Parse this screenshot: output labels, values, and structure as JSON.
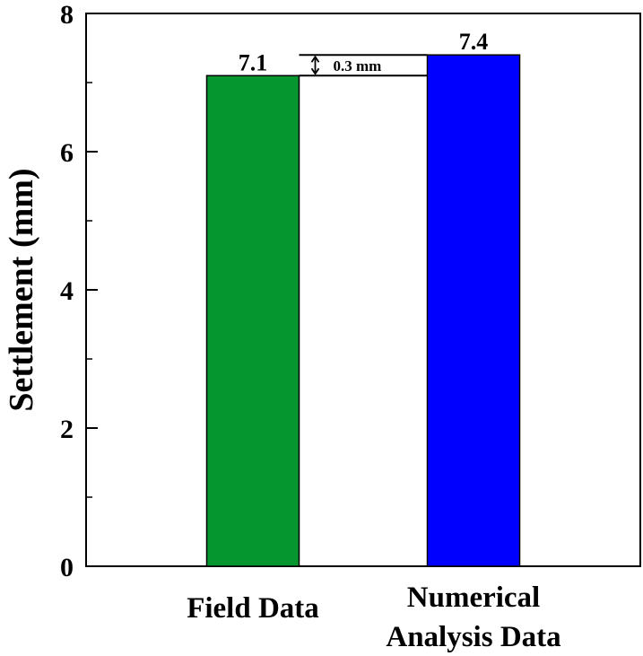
{
  "chart_data": {
    "type": "bar",
    "categories": [
      [
        "Field Data"
      ],
      [
        "Numerical",
        "Analysis Data"
      ]
    ],
    "values": [
      7.1,
      7.4
    ],
    "data_labels": [
      "7.1",
      "7.4"
    ],
    "colors": [
      "#05962f",
      "#0000ff"
    ],
    "title": "",
    "xlabel": "",
    "ylabel": "Settlement (mm)",
    "ylim": [
      0,
      8
    ],
    "yticks": [
      0,
      2,
      4,
      6,
      8
    ],
    "grid": false,
    "legend": "none",
    "annotation": {
      "text": "0.3 mm",
      "from_value": 7.1,
      "to_value": 7.4
    }
  }
}
